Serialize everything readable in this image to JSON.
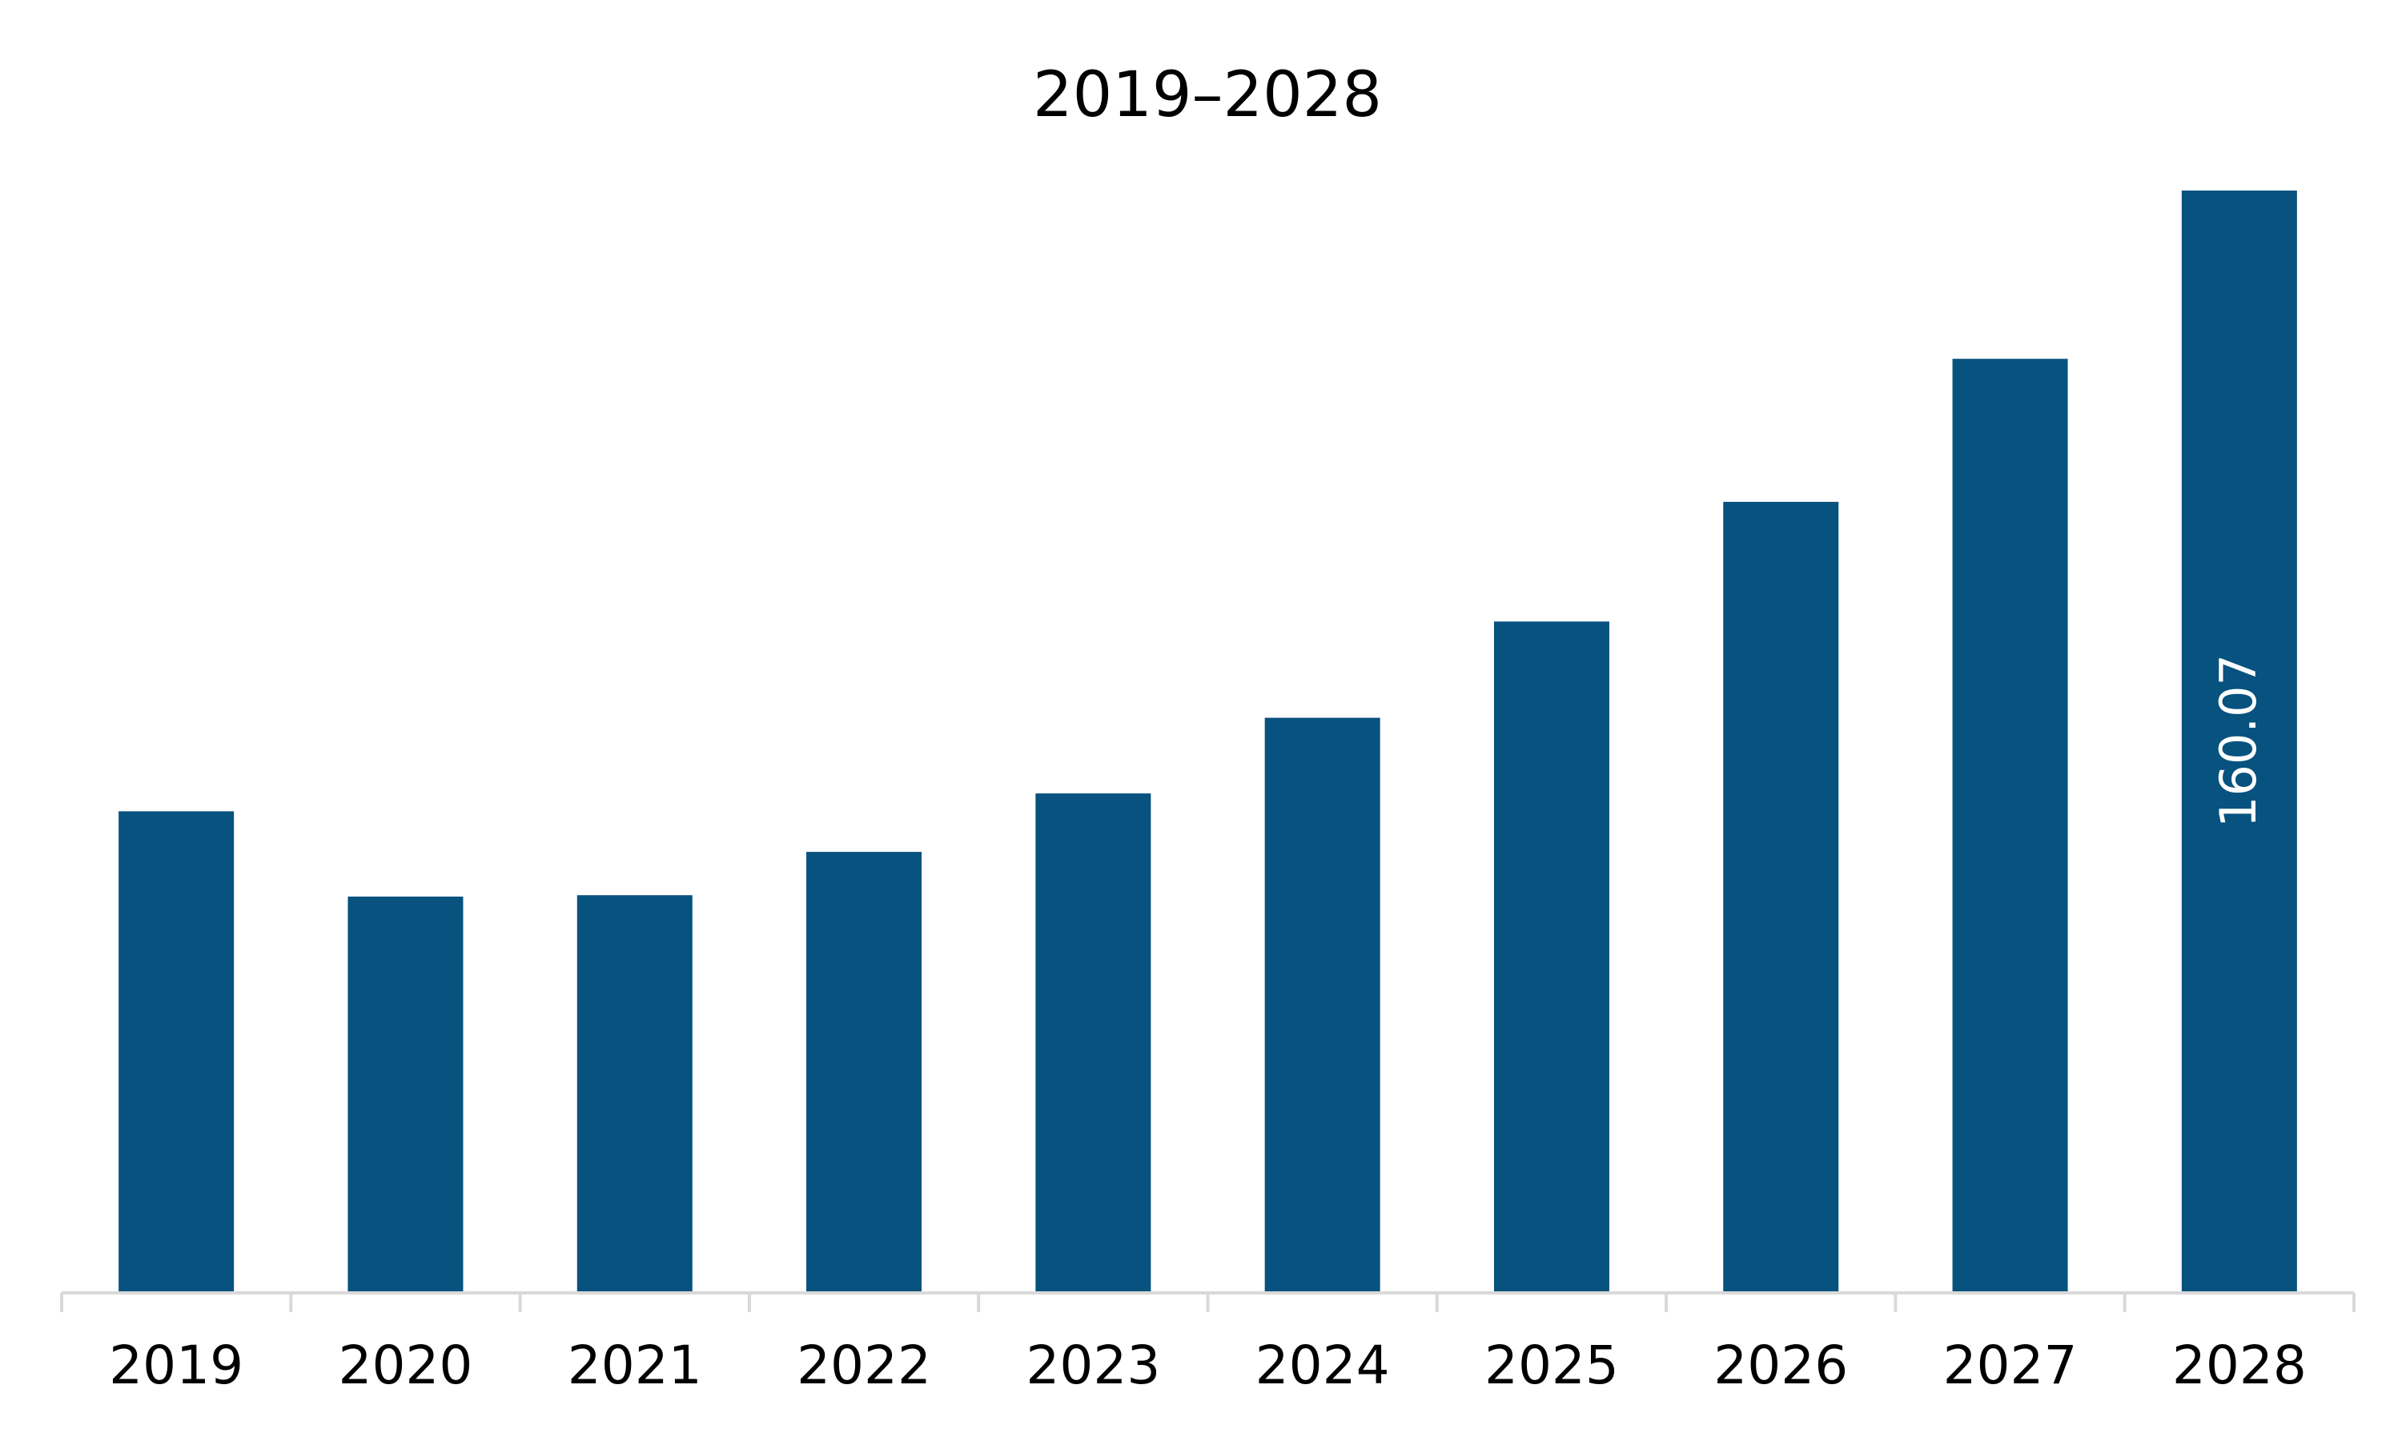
{
  "chart_data": {
    "type": "bar",
    "title": "2019–2028",
    "xlabel": "",
    "ylabel": "",
    "categories": [
      "2019",
      "2020",
      "2021",
      "2022",
      "2023",
      "2024",
      "2025",
      "2026",
      "2027",
      "2028"
    ],
    "values": [
      69.8,
      57.4,
      57.6,
      63.9,
      72.4,
      83.4,
      97.4,
      114.8,
      135.6,
      160.07
    ],
    "data_labels": [
      "",
      "",
      "",
      "",
      "",
      "",
      "",
      "",
      "",
      "160.07"
    ],
    "ylim": [
      0,
      160.07
    ],
    "grid": false,
    "legend": "none",
    "colors": {
      "bar": "#07527f",
      "axis": "#d9d9d9",
      "text": "#000000",
      "data_label": "#ffffff"
    }
  }
}
